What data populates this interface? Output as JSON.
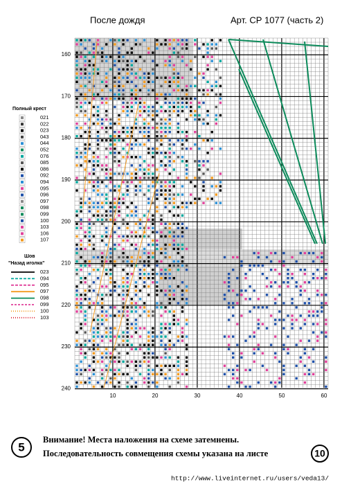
{
  "header": {
    "title": "После дождя",
    "article": "Арт. СР 1077  (часть 2)"
  },
  "grid": {
    "row_labels": [
      "160",
      "170",
      "180",
      "190",
      "200",
      "210",
      "220",
      "230",
      "240"
    ],
    "column_labels": [
      "10",
      "20",
      "30",
      "40",
      "50",
      "60"
    ]
  },
  "legend": {
    "full_cross_title": "Полный крест",
    "full_cross": [
      "021",
      "022",
      "023",
      "043",
      "044",
      "052",
      "076",
      "085",
      "086",
      "092",
      "094",
      "095",
      "096",
      "097",
      "098",
      "099",
      "100",
      "103",
      "106",
      "107"
    ],
    "backstitch_title": "Шов",
    "backstitch_subtitle": "\"Назад иголка\"",
    "backstitch": [
      "023",
      "094",
      "095",
      "097",
      "098",
      "099",
      "100",
      "103"
    ]
  },
  "footer": {
    "sheet": "5",
    "line1": "Внимание! Места наложения на схеме затемнены.",
    "line2": "Последовательность совмещения схемы указана на листе",
    "next_sheet": "10",
    "url": "http://www.liveinternet.ru/users/veda13/"
  }
}
